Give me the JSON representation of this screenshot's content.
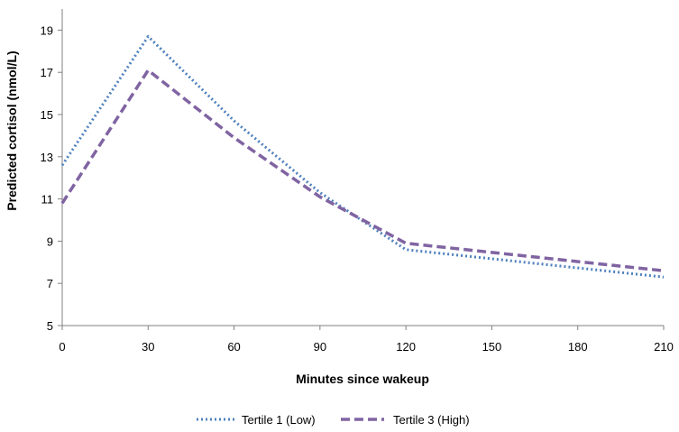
{
  "chart_data": {
    "type": "line",
    "xlabel": "Minutes since wakeup",
    "ylabel": "Predicted cortisol (nmol/L)",
    "x": [
      0,
      30,
      120,
      210
    ],
    "xlim": [
      0,
      210
    ],
    "ylim": [
      5,
      20
    ],
    "xticks": [
      0,
      30,
      60,
      90,
      120,
      150,
      180,
      210
    ],
    "yticks": [
      5,
      7,
      9,
      11,
      13,
      15,
      17,
      19
    ],
    "grid": false,
    "legend": "bottom",
    "series": [
      {
        "name": "Tertile 1 (Low)",
        "points": [
          [
            0,
            12.6
          ],
          [
            30,
            18.7
          ],
          [
            60,
            14.7
          ],
          [
            90,
            11.3
          ],
          [
            120,
            8.6
          ],
          [
            210,
            7.3
          ]
        ],
        "color": "#4f81bd",
        "style": "dotted"
      },
      {
        "name": "Tertile 3 (High)",
        "points": [
          [
            0,
            10.8
          ],
          [
            30,
            17.1
          ],
          [
            60,
            13.9
          ],
          [
            90,
            11.1
          ],
          [
            120,
            8.9
          ],
          [
            210,
            7.6
          ]
        ],
        "color": "#8064a2",
        "style": "dashed"
      }
    ]
  }
}
